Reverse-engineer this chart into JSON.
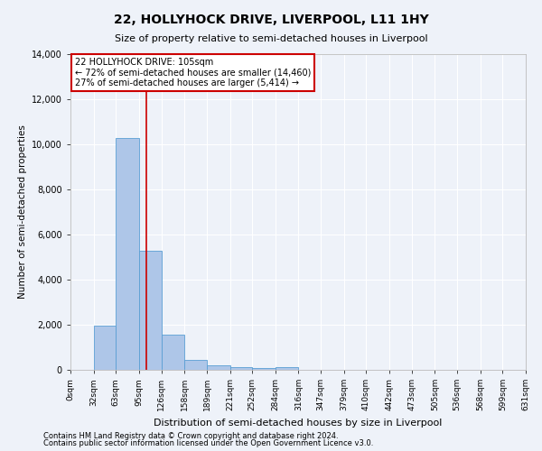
{
  "title1": "22, HOLLYHOCK DRIVE, LIVERPOOL, L11 1HY",
  "title2": "Size of property relative to semi-detached houses in Liverpool",
  "xlabel": "Distribution of semi-detached houses by size in Liverpool",
  "ylabel": "Number of semi-detached properties",
  "annotation_title": "22 HOLLYHOCK DRIVE: 105sqm",
  "annotation_line1": "← 72% of semi-detached houses are smaller (14,460)",
  "annotation_line2": "27% of semi-detached houses are larger (5,414) →",
  "footnote1": "Contains HM Land Registry data © Crown copyright and database right 2024.",
  "footnote2": "Contains public sector information licensed under the Open Government Licence v3.0.",
  "property_size": 105,
  "bin_edges": [
    0,
    32,
    63,
    95,
    126,
    158,
    189,
    221,
    252,
    284,
    316,
    347,
    379,
    410,
    442,
    473,
    505,
    536,
    568,
    599,
    631
  ],
  "bar_values": [
    0,
    1950,
    10300,
    5300,
    1550,
    450,
    200,
    130,
    80,
    110,
    0,
    0,
    0,
    0,
    0,
    0,
    0,
    0,
    0,
    0
  ],
  "bar_color": "#aec6e8",
  "bar_edge_color": "#5a9fd4",
  "vline_color": "#cc0000",
  "vline_x": 105,
  "ylim": [
    0,
    14000
  ],
  "yticks": [
    0,
    2000,
    4000,
    6000,
    8000,
    10000,
    12000,
    14000
  ],
  "background_color": "#eef2f9",
  "grid_color": "#ffffff",
  "annotation_box_color": "#ffffff",
  "annotation_box_edge": "#cc0000"
}
